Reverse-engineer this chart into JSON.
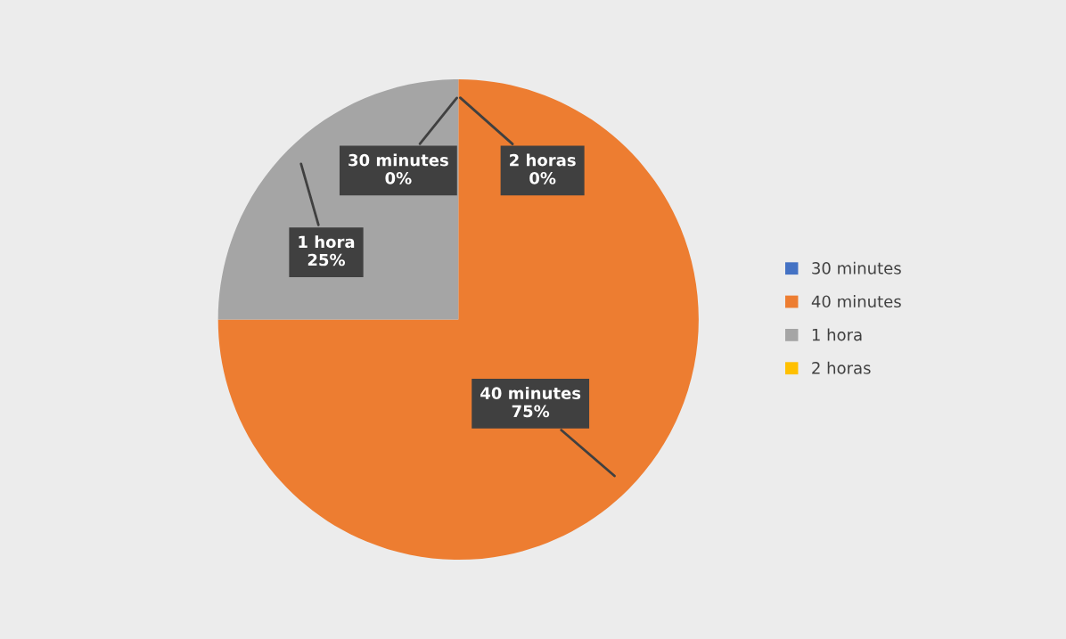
{
  "chart_data": {
    "type": "pie",
    "categories": [
      "30 minutes",
      "40 minutes",
      "1 hora",
      "2 horas"
    ],
    "values": [
      0,
      75,
      25,
      0
    ],
    "colors": [
      "#4472c4",
      "#ed7d31",
      "#a5a5a5",
      "#ffc000"
    ],
    "value_labels": [
      "0%",
      "75%",
      "25%",
      "0%"
    ],
    "legend": "right"
  }
}
